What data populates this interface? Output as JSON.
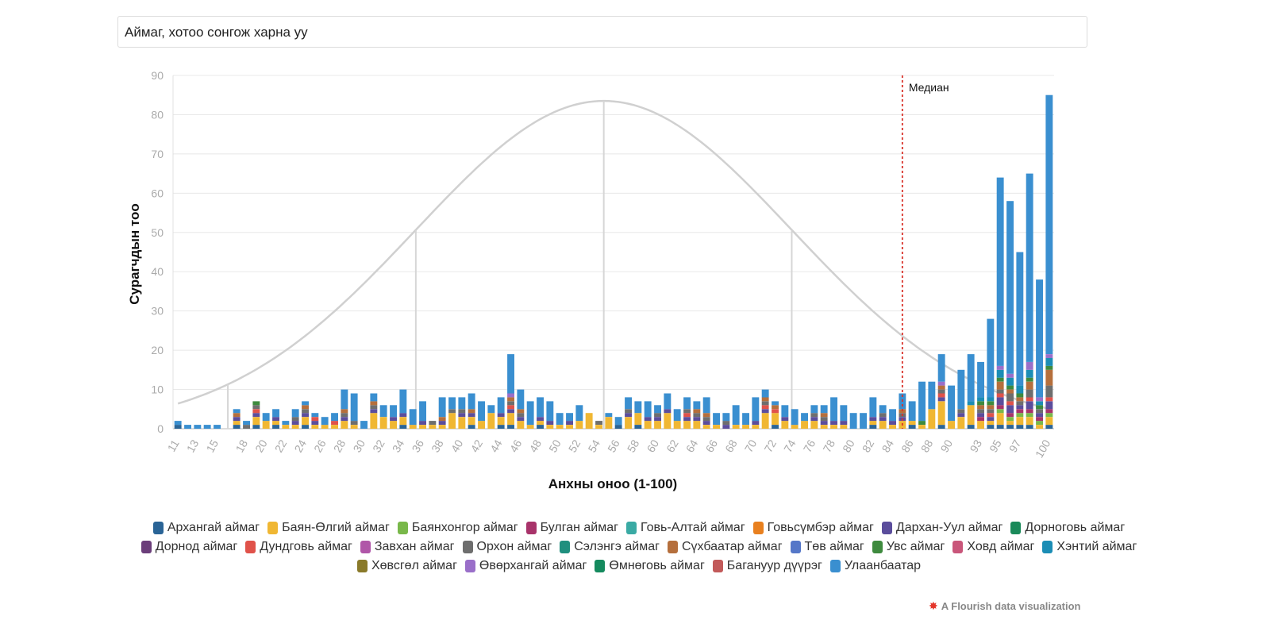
{
  "selector": {
    "label": "Аймаг, хотоо сонгож харна уу"
  },
  "footer": {
    "credit": "A Flourish data visualization"
  },
  "colors": {
    "Архангай аймаг": "#2a6496",
    "Баян-Өлгий аймаг": "#f0b733",
    "Баянхонгор аймаг": "#79b84a",
    "Булган аймаг": "#a8336a",
    "Говь-Алтай аймаг": "#3aaaa4",
    "Говьсүмбэр аймаг": "#e8801f",
    "Дархан-Уул аймаг": "#5b4d9c",
    "Дорноговь аймаг": "#1a8a5a",
    "Дорнод аймаг": "#6b3e7a",
    "Дундговь аймаг": "#e0524a",
    "Завхан аймаг": "#b056a8",
    "Орхон аймаг": "#6e6e6e",
    "Сэлэнгэ аймаг": "#1f8f7e",
    "Сүхбаатар аймаг": "#b56f3c",
    "Төв аймаг": "#5577c8",
    "Увс аймаг": "#3e8a3e",
    "Ховд аймаг": "#c9567a",
    "Хэнтий аймаг": "#1b8db5",
    "Хөвсгөл аймаг": "#8a7a2a",
    "Өвөрхангай аймаг": "#9a6fc9",
    "Өмнөговь аймаг": "#158a5e",
    "Багануур дүүрэг": "#c25a5a",
    "Улаанбаатар": "#3a8fd0"
  },
  "chart_data": {
    "type": "bar",
    "stacked": true,
    "title": "",
    "xlabel": "Анхны оноо (1-100)",
    "ylabel": "Сурагчдын тоо",
    "ylim": [
      0,
      90
    ],
    "yticks": [
      0,
      10,
      20,
      30,
      40,
      50,
      60,
      70,
      80,
      90
    ],
    "xticks": [
      11,
      13,
      15,
      18,
      20,
      22,
      24,
      26,
      28,
      30,
      32,
      34,
      36,
      38,
      40,
      42,
      44,
      46,
      48,
      50,
      52,
      54,
      56,
      58,
      60,
      62,
      64,
      66,
      68,
      70,
      72,
      74,
      76,
      78,
      80,
      82,
      84,
      86,
      88,
      90,
      93,
      95,
      97,
      100
    ],
    "categories": [
      11,
      12,
      13,
      14,
      15,
      17,
      18,
      19,
      20,
      21,
      22,
      23,
      24,
      25,
      26,
      27,
      28,
      29,
      30,
      31,
      32,
      33,
      34,
      35,
      36,
      37,
      38,
      39,
      40,
      41,
      42,
      43,
      44,
      45,
      46,
      47,
      48,
      49,
      50,
      51,
      52,
      53,
      54,
      55,
      56,
      57,
      58,
      59,
      60,
      61,
      62,
      63,
      64,
      65,
      66,
      67,
      68,
      69,
      70,
      71,
      72,
      73,
      74,
      75,
      76,
      77,
      78,
      79,
      80,
      81,
      82,
      83,
      84,
      85,
      86,
      87,
      88,
      89,
      90,
      91,
      92,
      93,
      94,
      95,
      96,
      97,
      98,
      99,
      100
    ],
    "totals": [
      2,
      1,
      1,
      1,
      1,
      5,
      2,
      7,
      4,
      5,
      2,
      5,
      7,
      4,
      3,
      4,
      10,
      9,
      2,
      9,
      6,
      6,
      10,
      5,
      7,
      2,
      8,
      8,
      8,
      9,
      7,
      6,
      8,
      19,
      10,
      7,
      8,
      7,
      4,
      4,
      6,
      4,
      2,
      4,
      3,
      8,
      7,
      7,
      6,
      9,
      5,
      8,
      7,
      8,
      4,
      4,
      6,
      4,
      8,
      10,
      7,
      6,
      5,
      4,
      6,
      6,
      8,
      6,
      4,
      4,
      8,
      6,
      5,
      9,
      7,
      12,
      12,
      19,
      11,
      15,
      19,
      17,
      28,
      64,
      58,
      45,
      65,
      38,
      85
    ],
    "series": [
      {
        "name": "Архангай аймаг",
        "values": [
          1,
          0,
          0,
          0,
          0,
          1,
          0,
          1,
          0,
          1,
          0,
          0,
          1,
          0,
          0,
          0,
          0,
          0,
          0,
          0,
          0,
          0,
          1,
          0,
          0,
          0,
          0,
          0,
          0,
          1,
          0,
          0,
          1,
          1,
          0,
          0,
          1,
          0,
          0,
          0,
          0,
          0,
          0,
          0,
          1,
          0,
          1,
          0,
          0,
          0,
          0,
          0,
          0,
          0,
          0,
          0,
          0,
          0,
          0,
          0,
          1,
          0,
          0,
          0,
          0,
          0,
          0,
          0,
          0,
          0,
          1,
          0,
          0,
          0,
          1,
          0,
          0,
          1,
          0,
          0,
          1,
          0,
          1,
          1,
          1,
          1,
          1,
          0,
          1
        ]
      },
      {
        "name": "Баян-Өлгий аймаг",
        "values": [
          0,
          0,
          0,
          0,
          0,
          1,
          0,
          2,
          2,
          1,
          1,
          1,
          2,
          1,
          1,
          1,
          2,
          1,
          0,
          4,
          3,
          2,
          2,
          1,
          1,
          1,
          1,
          4,
          3,
          2,
          2,
          4,
          2,
          3,
          2,
          1,
          1,
          1,
          1,
          1,
          2,
          4,
          1,
          3,
          0,
          3,
          3,
          2,
          2,
          4,
          2,
          2,
          2,
          1,
          1,
          0,
          1,
          1,
          1,
          4,
          3,
          2,
          1,
          2,
          2,
          1,
          1,
          1,
          0,
          0,
          1,
          2,
          1,
          2,
          1,
          1,
          5,
          6,
          2,
          3,
          5,
          2,
          1,
          3,
          1,
          2,
          2,
          1,
          2
        ]
      },
      {
        "name": "Баянхонгор аймаг",
        "values": [
          0,
          0,
          0,
          0,
          0,
          0,
          0,
          0,
          0,
          0,
          0,
          0,
          0,
          0,
          0,
          0,
          0,
          0,
          0,
          0,
          0,
          0,
          0,
          0,
          0,
          0,
          0,
          0,
          0,
          0,
          0,
          0,
          0,
          0,
          0,
          0,
          0,
          0,
          0,
          0,
          0,
          0,
          0,
          0,
          0,
          0,
          0,
          0,
          0,
          0,
          0,
          0,
          0,
          0,
          0,
          0,
          0,
          0,
          0,
          0,
          0,
          0,
          0,
          0,
          0,
          0,
          0,
          0,
          0,
          0,
          0,
          0,
          0,
          0,
          0,
          0,
          0,
          0,
          0,
          0,
          0,
          0,
          0,
          1,
          1,
          1,
          1,
          1,
          1
        ]
      },
      {
        "name": "Булган аймаг",
        "values": [
          0,
          0,
          0,
          0,
          0,
          0,
          0,
          0,
          0,
          0,
          0,
          0,
          0,
          0,
          0,
          0,
          0,
          0,
          0,
          0,
          0,
          0,
          0,
          0,
          0,
          0,
          0,
          0,
          0,
          0,
          0,
          0,
          0,
          0,
          0,
          0,
          0,
          0,
          0,
          0,
          0,
          0,
          0,
          0,
          0,
          0,
          0,
          0,
          0,
          0,
          0,
          0,
          0,
          0,
          0,
          0,
          0,
          0,
          0,
          0,
          0,
          0,
          0,
          0,
          0,
          0,
          0,
          0,
          0,
          0,
          0,
          0,
          0,
          0,
          0,
          0,
          0,
          0,
          0,
          0,
          0,
          1,
          0,
          1,
          1,
          1,
          1,
          1,
          1
        ]
      },
      {
        "name": "Дархан-Уул аймаг",
        "values": [
          0,
          0,
          0,
          0,
          0,
          1,
          0,
          1,
          0,
          1,
          0,
          1,
          1,
          1,
          0,
          0,
          1,
          0,
          0,
          1,
          0,
          1,
          1,
          0,
          1,
          0,
          1,
          0,
          1,
          1,
          0,
          0,
          1,
          1,
          1,
          0,
          1,
          1,
          0,
          1,
          0,
          0,
          0,
          0,
          0,
          1,
          0,
          1,
          1,
          1,
          0,
          1,
          1,
          1,
          0,
          1,
          0,
          0,
          1,
          1,
          0,
          1,
          0,
          0,
          1,
          1,
          1,
          1,
          0,
          0,
          1,
          1,
          1,
          1,
          0,
          0,
          0,
          1,
          0,
          1,
          0,
          1,
          1,
          2,
          2,
          1,
          2,
          1,
          2
        ]
      },
      {
        "name": "Дундговь аймаг",
        "values": [
          0,
          0,
          0,
          0,
          0,
          0,
          0,
          1,
          0,
          0,
          0,
          0,
          0,
          1,
          0,
          1,
          0,
          0,
          0,
          0,
          0,
          0,
          0,
          0,
          0,
          0,
          0,
          0,
          0,
          0,
          0,
          0,
          0,
          1,
          0,
          0,
          0,
          0,
          0,
          0,
          0,
          0,
          0,
          0,
          0,
          0,
          0,
          0,
          0,
          0,
          0,
          1,
          0,
          0,
          0,
          0,
          0,
          0,
          0,
          1,
          1,
          0,
          0,
          0,
          0,
          0,
          0,
          0,
          0,
          0,
          0,
          0,
          0,
          0,
          0,
          0,
          0,
          1,
          0,
          0,
          0,
          0,
          1,
          1,
          1,
          0,
          1,
          0,
          1
        ]
      },
      {
        "name": "Орхон аймаг",
        "values": [
          0,
          0,
          0,
          0,
          0,
          0,
          1,
          1,
          0,
          0,
          0,
          1,
          1,
          0,
          0,
          0,
          1,
          1,
          0,
          1,
          0,
          0,
          0,
          0,
          0,
          1,
          0,
          1,
          1,
          0,
          0,
          0,
          0,
          1,
          1,
          0,
          0,
          0,
          0,
          0,
          0,
          0,
          1,
          0,
          0,
          1,
          0,
          0,
          1,
          0,
          0,
          1,
          1,
          1,
          0,
          1,
          0,
          0,
          0,
          1,
          0,
          0,
          0,
          0,
          1,
          1,
          0,
          0,
          0,
          0,
          0,
          1,
          0,
          1,
          0,
          0,
          0,
          1,
          0,
          1,
          0,
          1,
          1,
          1,
          2,
          1,
          2,
          1,
          3
        ]
      },
      {
        "name": "Сүхбаатар аймаг",
        "values": [
          0,
          0,
          0,
          0,
          0,
          1,
          0,
          0,
          0,
          0,
          0,
          0,
          1,
          0,
          0,
          0,
          1,
          0,
          0,
          1,
          0,
          0,
          0,
          0,
          0,
          0,
          1,
          0,
          0,
          1,
          0,
          0,
          0,
          1,
          1,
          0,
          0,
          0,
          0,
          0,
          0,
          0,
          0,
          0,
          0,
          0,
          0,
          0,
          0,
          0,
          0,
          0,
          1,
          1,
          0,
          0,
          0,
          0,
          0,
          1,
          1,
          0,
          0,
          0,
          0,
          1,
          0,
          0,
          0,
          0,
          0,
          0,
          0,
          1,
          0,
          0,
          0,
          1,
          0,
          0,
          0,
          1,
          1,
          2,
          1,
          1,
          2,
          0,
          4
        ]
      },
      {
        "name": "Увс аймаг",
        "values": [
          0,
          0,
          0,
          0,
          0,
          0,
          0,
          1,
          0,
          0,
          0,
          0,
          0,
          0,
          0,
          0,
          0,
          0,
          0,
          0,
          0,
          0,
          0,
          0,
          0,
          0,
          0,
          0,
          0,
          0,
          0,
          0,
          0,
          0,
          0,
          0,
          0,
          0,
          0,
          0,
          0,
          0,
          0,
          0,
          0,
          0,
          0,
          0,
          0,
          0,
          0,
          0,
          0,
          0,
          0,
          0,
          0,
          0,
          0,
          0,
          0,
          0,
          0,
          0,
          0,
          0,
          0,
          0,
          0,
          0,
          0,
          0,
          0,
          0,
          0,
          1,
          0,
          0,
          0,
          0,
          0,
          1,
          1,
          1,
          1,
          1,
          1,
          1,
          1
        ]
      },
      {
        "name": "Хэнтий аймаг",
        "values": [
          0,
          0,
          0,
          0,
          0,
          0,
          0,
          0,
          0,
          0,
          0,
          0,
          0,
          0,
          0,
          0,
          0,
          0,
          0,
          0,
          0,
          0,
          0,
          0,
          0,
          0,
          0,
          0,
          0,
          0,
          0,
          0,
          0,
          0,
          0,
          0,
          0,
          0,
          0,
          0,
          0,
          0,
          0,
          0,
          0,
          0,
          0,
          0,
          0,
          0,
          0,
          0,
          0,
          0,
          0,
          0,
          0,
          0,
          0,
          0,
          0,
          0,
          0,
          0,
          0,
          0,
          0,
          0,
          0,
          0,
          0,
          0,
          0,
          0,
          0,
          0,
          0,
          0,
          0,
          0,
          1,
          1,
          1,
          2,
          2,
          2,
          2,
          1,
          2
        ]
      },
      {
        "name": "Өвөрхангай аймаг",
        "values": [
          0,
          0,
          0,
          0,
          0,
          0,
          0,
          0,
          0,
          0,
          0,
          0,
          0,
          0,
          0,
          0,
          0,
          0,
          0,
          0,
          0,
          0,
          0,
          0,
          0,
          0,
          0,
          0,
          0,
          0,
          0,
          0,
          0,
          1,
          0,
          0,
          0,
          0,
          0,
          0,
          0,
          0,
          0,
          0,
          0,
          0,
          0,
          0,
          0,
          0,
          0,
          0,
          0,
          0,
          0,
          0,
          0,
          0,
          0,
          0,
          0,
          0,
          0,
          0,
          0,
          0,
          0,
          0,
          0,
          0,
          0,
          0,
          0,
          0,
          0,
          0,
          0,
          1,
          0,
          0,
          0,
          0,
          0,
          1,
          1,
          0,
          2,
          1,
          1
        ]
      },
      {
        "name": "Улаанбаатар",
        "values": [
          1,
          1,
          1,
          1,
          1,
          1,
          1,
          0,
          2,
          1,
          1,
          2,
          0,
          1,
          2,
          2,
          5,
          7,
          2,
          1,
          3,
          2,
          6,
          4,
          5,
          0,
          5,
          3,
          3,
          3,
          5,
          2,
          3,
          9,
          5,
          6,
          5,
          5,
          3,
          2,
          4,
          0,
          0,
          1,
          2,
          3,
          3,
          4,
          2,
          4,
          3,
          2,
          2,
          4,
          3,
          2,
          5,
          3,
          6,
          2,
          1,
          3,
          4,
          2,
          2,
          2,
          6,
          4,
          4,
          4,
          4,
          2,
          3,
          4,
          5,
          10,
          7,
          8,
          9,
          10,
          12,
          9,
          21,
          51,
          46,
          35,
          50,
          31,
          67
        ]
      }
    ],
    "median_line": {
      "label": "Медиан",
      "x": 85
    },
    "curve": {
      "type": "normal",
      "mean": 54.5,
      "peak": 83.5
    },
    "legend": [
      "Архангай аймаг",
      "Баян-Өлгий аймаг",
      "Баянхонгор аймаг",
      "Булган аймаг",
      "Говь-Алтай аймаг",
      "Говьсүмбэр аймаг",
      "Дархан-Уул аймаг",
      "Дорноговь аймаг",
      "Дорнод аймаг",
      "Дундговь аймаг",
      "Завхан аймаг",
      "Орхон аймаг",
      "Сэлэнгэ аймаг",
      "Сүхбаатар аймаг",
      "Төв аймаг",
      "Увс аймаг",
      "Ховд аймаг",
      "Хэнтий аймаг",
      "Хөвсгөл аймаг",
      "Өвөрхангай аймаг",
      "Өмнөговь аймаг",
      "Багануур дүүрэг",
      "Улаанбаатар"
    ]
  }
}
